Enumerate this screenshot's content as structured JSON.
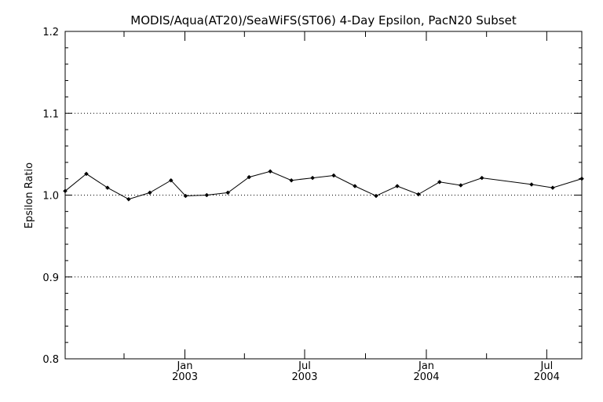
{
  "chart_data": {
    "type": "line",
    "title": "MODIS/Aqua(AT20)/SeaWiFS(ST06) 4-Day Epsilon, PacN20 Subset",
    "xlabel": "",
    "ylabel": "Epsilon Ratio",
    "xlim": [
      "2002-07-04",
      "2004-08-23"
    ],
    "ylim": [
      0.8,
      1.2
    ],
    "yticks": [
      0.8,
      0.9,
      1.0,
      1.1,
      1.2
    ],
    "ytick_labels": [
      "0.8",
      "0.9",
      "1.0",
      "1.1",
      "1.2"
    ],
    "xticks_major": [
      {
        "date": "2003-01-01",
        "month": "Jan",
        "year": "2003"
      },
      {
        "date": "2003-07-01",
        "month": "Jul",
        "year": "2003"
      },
      {
        "date": "2004-01-01",
        "month": "Jan",
        "year": "2004"
      },
      {
        "date": "2004-07-01",
        "month": "Jul",
        "year": "2004"
      }
    ],
    "grid": "dotted horizontal at major y ticks",
    "series": [
      {
        "x": [
          "2002-07-04",
          "2002-08-05",
          "2002-09-06",
          "2002-10-08",
          "2002-11-09",
          "2002-12-11",
          "2003-01-02",
          "2003-02-03",
          "2003-03-07",
          "2003-04-08",
          "2003-05-10",
          "2003-06-11",
          "2003-07-13",
          "2003-08-14",
          "2003-09-15",
          "2003-10-17",
          "2003-11-18",
          "2003-12-20",
          "2004-01-21",
          "2004-02-22",
          "2004-03-25",
          "2004-06-08",
          "2004-07-10",
          "2004-08-23"
        ],
        "values": [
          1.005,
          1.026,
          1.009,
          0.995,
          1.003,
          1.018,
          0.999,
          1.0,
          1.003,
          1.022,
          1.029,
          1.018,
          1.021,
          1.024,
          1.011,
          0.999,
          1.011,
          1.001,
          1.016,
          1.012,
          1.021,
          1.013,
          1.009,
          1.02
        ]
      }
    ]
  }
}
